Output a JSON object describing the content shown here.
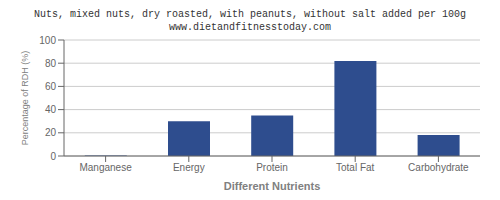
{
  "chart_data": {
    "type": "bar",
    "title": "Nuts, mixed nuts, dry roasted, with peanuts, without salt added per 100g",
    "subtitle": "www.dietandfitnesstoday.com",
    "categories": [
      "Manganese",
      "Energy",
      "Protein",
      "Total Fat",
      "Carbohydrate"
    ],
    "values": [
      0.5,
      30,
      35,
      82,
      18
    ],
    "color": "#2e4d8e",
    "xlabel": "Different Nutrients",
    "ylabel": "Percentage of RDH (%)",
    "ylim": [
      0,
      100
    ],
    "yticks": [
      0,
      20,
      40,
      60,
      80,
      100
    ],
    "grid": true
  }
}
